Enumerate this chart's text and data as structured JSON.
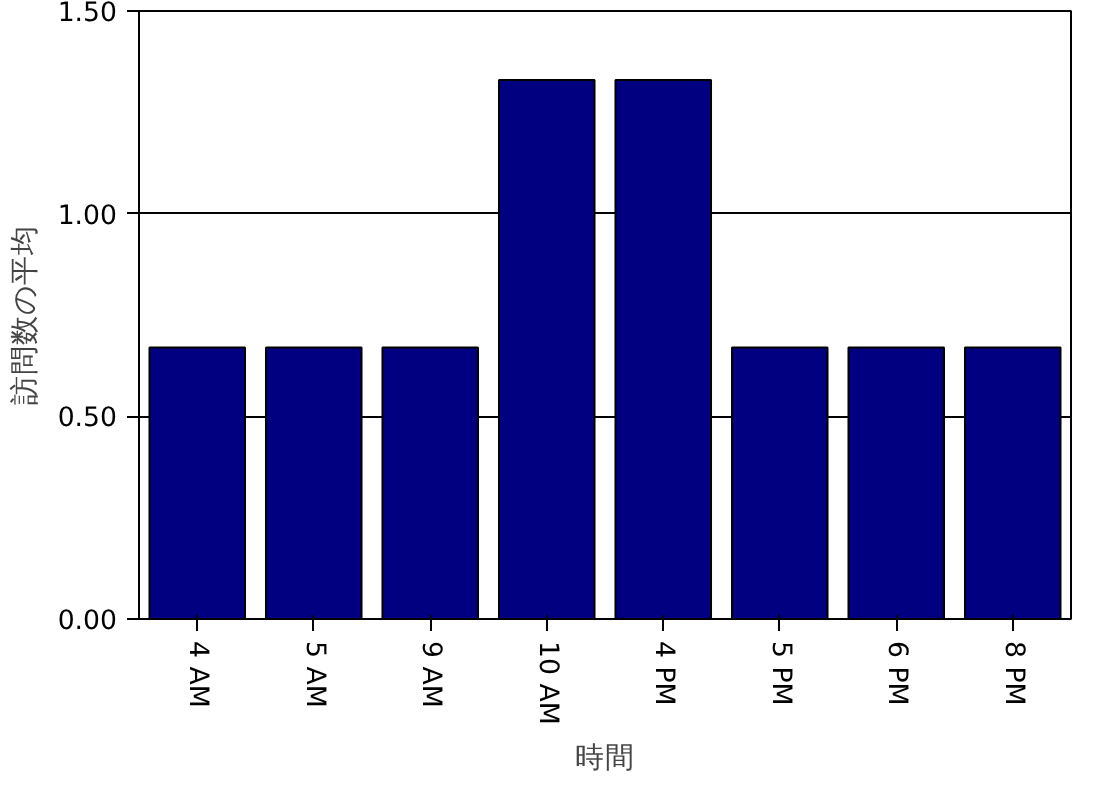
{
  "chart_data": {
    "type": "bar",
    "xlabel": "時間",
    "ylabel": "訪問数の平均",
    "categories": [
      "4 AM",
      "5 AM",
      "9 AM",
      "10 AM",
      "4 PM",
      "5 PM",
      "6 PM",
      "8 PM"
    ],
    "values": [
      0.67,
      0.67,
      0.67,
      1.33,
      1.33,
      0.67,
      0.67,
      0.67
    ],
    "color": "#000080",
    "ylim": [
      0,
      1.5
    ],
    "yticks": [
      {
        "value": 0,
        "label": "0.00"
      },
      {
        "value": 0.5,
        "label": "0.50"
      },
      {
        "value": 1,
        "label": "1.00"
      },
      {
        "value": 1.5,
        "label": "1.50"
      }
    ],
    "grid": "y"
  }
}
